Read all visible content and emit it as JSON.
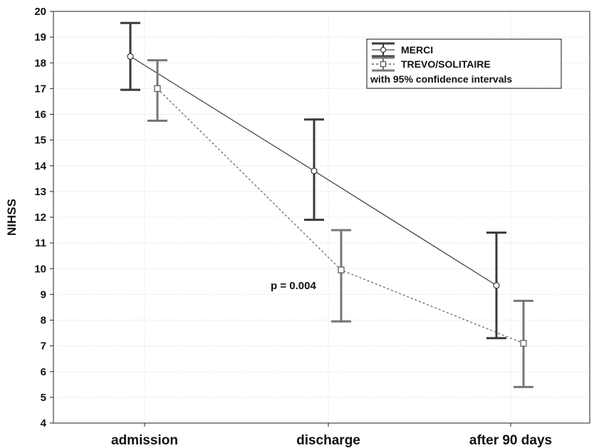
{
  "chart_data": {
    "type": "line",
    "ylabel": "NIHSS",
    "ylim": [
      4,
      20
    ],
    "yticks": [
      "4",
      "5",
      "6",
      "7",
      "8",
      "9",
      "10",
      "11",
      "12",
      "13",
      "14",
      "15",
      "16",
      "17",
      "18",
      "19",
      "20"
    ],
    "categories": [
      "admission",
      "discharge",
      "after 90 days"
    ],
    "grid": true,
    "series": [
      {
        "name": "MERCI",
        "values": [
          18.25,
          13.8,
          9.35
        ],
        "lower": [
          16.95,
          11.9,
          7.3
        ],
        "upper": [
          19.55,
          15.8,
          11.4
        ],
        "color": "#3a3a3a",
        "line": "solid",
        "marker": "circle"
      },
      {
        "name": "TREVO/SOLITAIRE",
        "values": [
          17.0,
          9.95,
          7.1
        ],
        "lower": [
          15.75,
          7.95,
          5.4
        ],
        "upper": [
          18.1,
          11.5,
          8.75
        ],
        "color": "#777777",
        "line": "dotted",
        "marker": "square"
      }
    ],
    "legend": {
      "position": "top-right",
      "entries": [
        "MERCI",
        "TREVO/SOLITAIRE"
      ],
      "note": "with 95% confidence intervals"
    },
    "annotations": [
      "p = 0.004"
    ]
  }
}
